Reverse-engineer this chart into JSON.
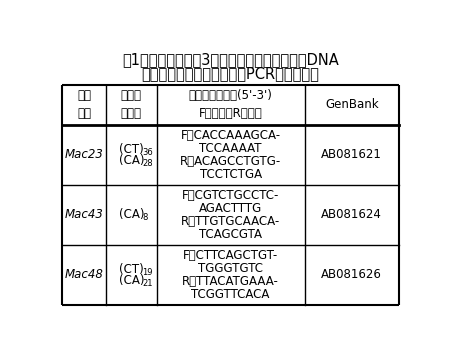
{
  "title_line1": "表1　分析に用いた3つのマイクロサテライトDNA",
  "title_line2": "マーカー（遺伝子座）及びPCRプライマー",
  "header_row": [
    "遺伝\n子座",
    "繰り返\nし配列",
    "プライマー配列(5'-3')\nF：前方、R：後方",
    "GenBank"
  ],
  "rows": [
    {
      "col0": "Mac23",
      "col1_main": [
        "(CT)",
        "(CA)"
      ],
      "col1_sub": [
        "36",
        "28"
      ],
      "col2": [
        "F：CACCAAAGCA-",
        "TCCAAAAT",
        "R：ACAGCCTGTG-",
        "TCCTCTGA"
      ],
      "col3": "AB081621"
    },
    {
      "col0": "Mac43",
      "col1_main": [
        "(CA)"
      ],
      "col1_sub": [
        "8"
      ],
      "col2": [
        "F：CGTCTGCCTC-",
        "AGACTTTG",
        "R：TTGTGCAACA-",
        "TCAGCGTA"
      ],
      "col3": "AB081624"
    },
    {
      "col0": "Mac48",
      "col1_main": [
        "(CT)",
        "(CA)"
      ],
      "col1_sub": [
        "19",
        "21"
      ],
      "col2": [
        "F：CTTCAGCTGT-",
        "TGGGTGTC",
        "R：TTACATGAAA-",
        "TCGGTTCACA"
      ],
      "col3": "AB081626"
    }
  ],
  "bg_color": "#ffffff",
  "line_color": "#000000",
  "text_color": "#000000",
  "body_font_size": 8.5,
  "header_font_size": 8.5,
  "title_font_size": 10.5
}
